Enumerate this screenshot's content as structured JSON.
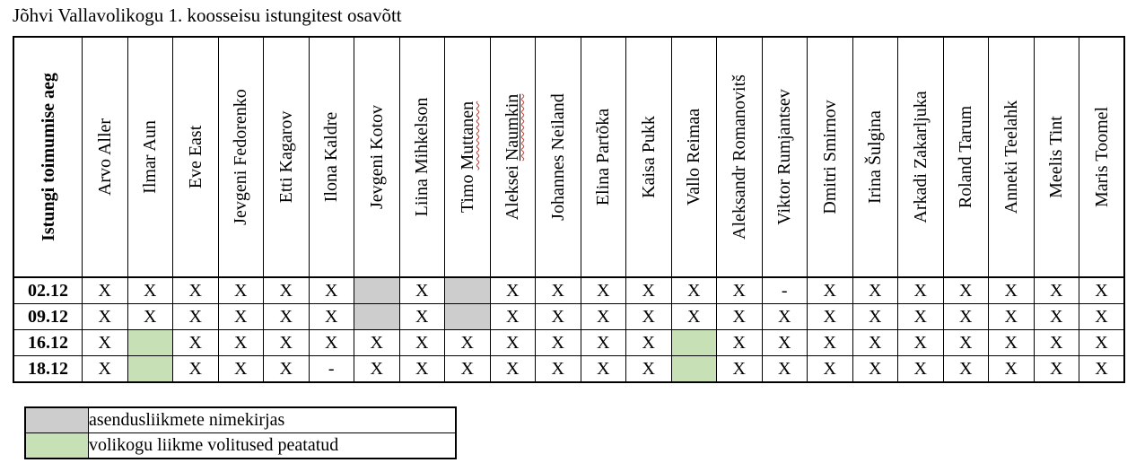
{
  "title": "Jõhvi Vallavolikogu 1. koosseisu istungitest osavõtt",
  "colors": {
    "substitute_gray": "#cdcdcd",
    "suspended_green": "#c7e0b5",
    "spellcheck_red": "#e02b20"
  },
  "table": {
    "date_column_header": "Istungi toimumise aeg",
    "members": [
      {
        "name": "Arvo Aller"
      },
      {
        "name": "Ilmar Aun"
      },
      {
        "name": "Eve East"
      },
      {
        "name": "Jevgeni Fedorenko"
      },
      {
        "name": "Etti Kagarov"
      },
      {
        "name": "Ilona Kaldre"
      },
      {
        "name": "Jevgeni Kotov"
      },
      {
        "name": "Liina Mihkelson"
      },
      {
        "name": "Timo Muttanen",
        "wavy": "Muttanen"
      },
      {
        "name": "Aleksei Naumkin",
        "wavy": "Naumkin",
        "underline": "Naumkin"
      },
      {
        "name": "Johannes Neiland"
      },
      {
        "name": "Elina Partõka"
      },
      {
        "name": "Kaisa Pukk"
      },
      {
        "name": "Vallo Reimaa"
      },
      {
        "name": "Aleksandr Romanovitš"
      },
      {
        "name": "Viktor Rumjantsev"
      },
      {
        "name": "Dmitri Smirnov"
      },
      {
        "name": "Irina Šulgina"
      },
      {
        "name": "Arkadi Zakarljuka"
      },
      {
        "name": "Roland Tarum"
      },
      {
        "name": "Anneki Teelahk"
      },
      {
        "name": "Meelis Tint"
      },
      {
        "name": "Maris Toomel"
      }
    ],
    "rows": [
      {
        "date": "02.12",
        "cells": [
          "X",
          "X",
          "X",
          "X",
          "X",
          "X",
          "gray",
          "X",
          "gray",
          "X",
          "X",
          "X",
          "X",
          "X",
          "X",
          "-",
          "X",
          "X",
          "X",
          "X",
          "X",
          "X",
          "X"
        ]
      },
      {
        "date": "09.12",
        "cells": [
          "X",
          "X",
          "X",
          "X",
          "X",
          "X",
          "gray",
          "X",
          "gray",
          "X",
          "X",
          "X",
          "X",
          "X",
          "X",
          "X",
          "X",
          "X",
          "X",
          "X",
          "X",
          "X",
          "X"
        ]
      },
      {
        "date": "16.12",
        "cells": [
          "X",
          "green",
          "X",
          "X",
          "X",
          "X",
          "X",
          "X",
          "X",
          "X",
          "X",
          "X",
          "X",
          "green",
          "X",
          "X",
          "X",
          "X",
          "X",
          "X",
          "X",
          "X",
          "X"
        ]
      },
      {
        "date": "18.12",
        "cells": [
          "X",
          "green",
          "X",
          "X",
          "X",
          "-",
          "X",
          "X",
          "X",
          "X",
          "X",
          "X",
          "X",
          "green",
          "X",
          "X",
          "X",
          "X",
          "X",
          "X",
          "X",
          "X",
          "X"
        ]
      }
    ]
  },
  "legend": [
    {
      "swatch": "substitute_gray",
      "label": "asendusliikmete nimekirjas"
    },
    {
      "swatch": "suspended_green",
      "label": "volikogu liikme volitused peatatud"
    }
  ]
}
